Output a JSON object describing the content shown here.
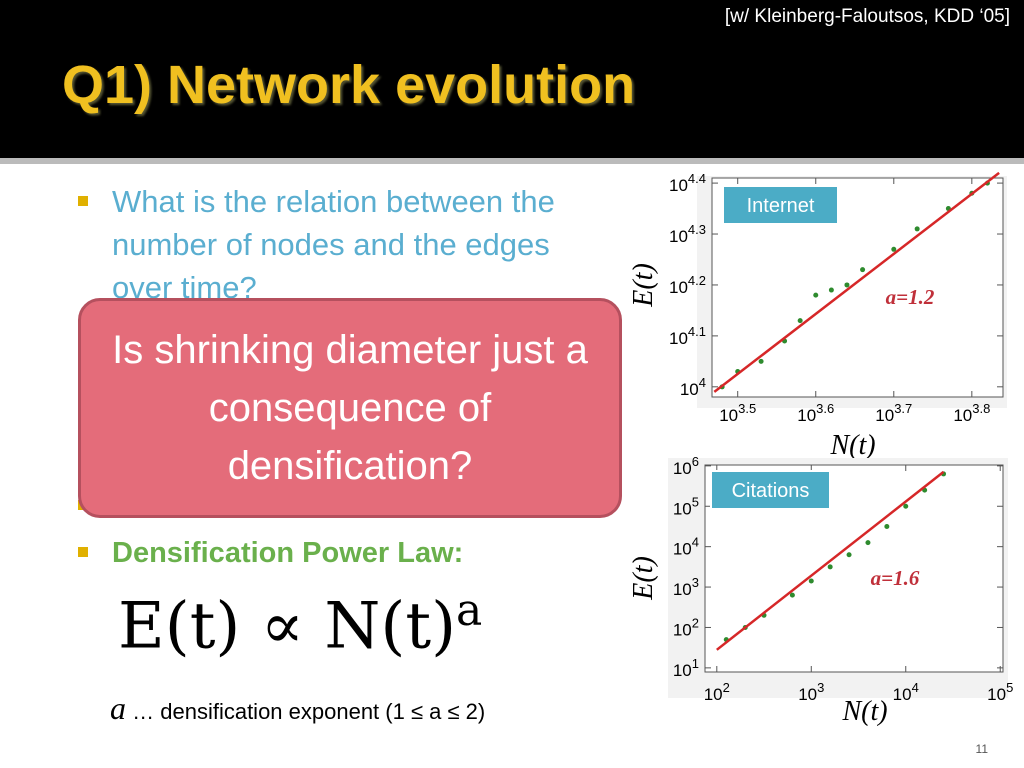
{
  "slide": {
    "attribution": "[w/ Kleinberg-Faloutsos, KDD ‘05]",
    "title": "Q1) Network evolution",
    "bullets": [
      "What is the relation between the number of nodes and the edges over time?",
      "Densification Power Law:"
    ],
    "formula": {
      "base": "E(t) ∝ N(t)",
      "exponent": "a"
    },
    "footnote": {
      "symbol": "a",
      "text": "… densification exponent (1 ≤ a ≤ 2)"
    },
    "popup": "Is shrinking diameter just a consequence of densification?",
    "page_number": "11"
  },
  "chart_data": [
    {
      "type": "scatter",
      "label": "Internet",
      "annotation": "a=1.2",
      "xlabel": "N(t)",
      "ylabel": "E(t)",
      "log_x": true,
      "log_y": true,
      "xlim": [
        2931,
        6918
      ],
      "ylim": [
        9550,
        25704
      ],
      "xticks": [
        {
          "value": 3162,
          "base": "10",
          "exponent": "3.5"
        },
        {
          "value": 3981,
          "base": "10",
          "exponent": "3.6"
        },
        {
          "value": 5012,
          "base": "10",
          "exponent": "3.7"
        },
        {
          "value": 6310,
          "base": "10",
          "exponent": "3.8"
        }
      ],
      "yticks": [
        {
          "value": 10000,
          "base": "10",
          "exponent": "4"
        },
        {
          "value": 12589,
          "base": "10",
          "exponent": "4.1"
        },
        {
          "value": 15849,
          "base": "10",
          "exponent": "4.2"
        },
        {
          "value": 19953,
          "base": "10",
          "exponent": "4.3"
        },
        {
          "value": 25119,
          "base": "10",
          "exponent": "4.4"
        }
      ],
      "series": [
        {
          "type": "scatter",
          "color": "#2e8b2e",
          "x": [
            3020,
            3162,
            3388,
            3631,
            3802,
            3981,
            4169,
            4365,
            4571,
            5012,
            5370,
            5888,
            6310,
            6607
          ],
          "values": [
            10000,
            10715,
            11220,
            12303,
            13490,
            15136,
            15488,
            15849,
            16982,
            18621,
            20417,
            22387,
            23988,
            25119
          ]
        },
        {
          "type": "line",
          "color": "#d62728",
          "x": [
            2951,
            6839
          ],
          "values": [
            9772,
            26303
          ]
        }
      ]
    },
    {
      "type": "scatter",
      "label": "Citations",
      "annotation": "a=1.6",
      "xlabel": "N(t)",
      "ylabel": "E(t)",
      "log_x": true,
      "log_y": true,
      "xlim": [
        75,
        107000
      ],
      "ylim": [
        7.9,
        1050000
      ],
      "xticks": [
        {
          "value": 100,
          "base": "10",
          "exponent": "2"
        },
        {
          "value": 1000,
          "base": "10",
          "exponent": "3"
        },
        {
          "value": 10000,
          "base": "10",
          "exponent": "4"
        },
        {
          "value": 100000,
          "base": "10",
          "exponent": "5"
        }
      ],
      "yticks": [
        {
          "value": 10,
          "base": "10",
          "exponent": "1"
        },
        {
          "value": 100,
          "base": "10",
          "exponent": "2"
        },
        {
          "value": 1000,
          "base": "10",
          "exponent": "3"
        },
        {
          "value": 10000,
          "base": "10",
          "exponent": "4"
        },
        {
          "value": 100000,
          "base": "10",
          "exponent": "5"
        },
        {
          "value": 1000000,
          "base": "10",
          "exponent": "6"
        }
      ],
      "series": [
        {
          "type": "scatter",
          "color": "#2e8b2e",
          "x": [
            126,
            200,
            316,
            631,
            1000,
            1585,
            2512,
            3981,
            6310,
            10000,
            15849,
            25119
          ],
          "values": [
            50,
            100,
            200,
            631,
            1413,
            3162,
            6310,
            12589,
            31623,
            100000,
            251189,
            630957
          ]
        },
        {
          "type": "line",
          "color": "#d62728",
          "x": [
            100,
            25119
          ],
          "values": [
            28,
            707946
          ]
        }
      ]
    }
  ]
}
